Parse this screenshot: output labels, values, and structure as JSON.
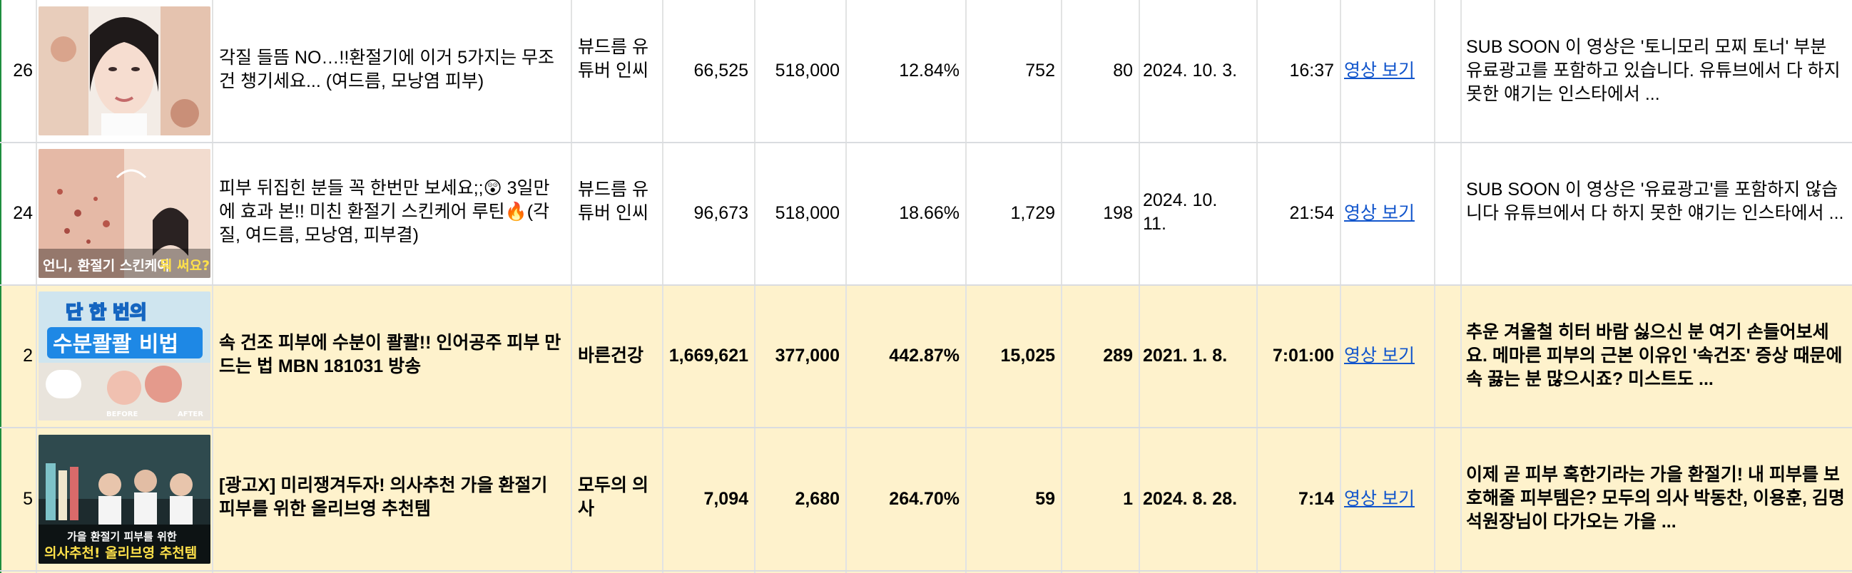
{
  "rows": [
    {
      "rank": "26",
      "title": "각질 들뜸 NO…!!환절기에 이거 5가지는 무조건 챙기세요... (여드름, 모낭염 피부)",
      "channel": "뷰드름 유튜버 인씨",
      "views": "66,525",
      "subscribers": "518,000",
      "ratio": "12.84%",
      "likes": "752",
      "comments": "80",
      "date": "2024. 10. 3.",
      "duration": "16:37",
      "link": "영상 보기",
      "description": "SUB SOON   이 영상은 '토니모리 모찌 토너' 부분 유료광고를 포함하고 있습니다. 유튜브에서 다 하지 못한 얘기는 인스타에서 ...",
      "highlight": false,
      "thumbnail": {
        "icon": "face-closeup-thumbnail-icon",
        "labels": []
      }
    },
    {
      "rank": "24",
      "title": "피부 뒤집힌 분들 꼭 한번만 보세요;;😲  3일만에 효과 본!! 미친 환절기 스킨케어 루틴🔥(각질, 여드름, 모낭염, 피부결)",
      "channel": "뷰드름 유튜버 인씨",
      "views": "96,673",
      "subscribers": "518,000",
      "ratio": "18.66%",
      "likes": "1,729",
      "comments": "198",
      "date": "2024. 10. 11.",
      "duration": "21:54",
      "link": "영상 보기",
      "description": "SUB SOON   이 영상은 '유료광고'를 포함하지 않습니다 유튜브에서 다 하지 못한 얘기는 인스타에서 ...",
      "highlight": false,
      "thumbnail": {
        "icon": "acne-skin-thumbnail-icon",
        "labels": [
          "언니, 환절기 스킨케어 뭐 써요?"
        ]
      }
    },
    {
      "rank": "2",
      "title": "속 건조 피부에 수분이 콸콸!! 인어공주 피부 만드는 법 MBN 181031 방송",
      "channel": "바른건강",
      "views": "1,669,621",
      "subscribers": "377,000",
      "ratio": "442.87%",
      "likes": "15,025",
      "comments": "289",
      "date": "2021. 1. 8.",
      "duration": "7:01:00",
      "link": "영상 보기",
      "description": "추운 겨울철 히터 바람 싫으신 분 여기 손들어보세요. 메마른 피부의 근본 이유인 '속건조' 증상 때문에 속 끓는 분 많으시죠? 미스트도 ...",
      "highlight": true,
      "thumbnail": {
        "icon": "moisture-skin-thumbnail-icon",
        "labels": [
          "단 한 번의",
          "수분콸콸 비법",
          "BEFORE",
          "AFTER"
        ]
      }
    },
    {
      "rank": "5",
      "title": "[광고X] 미리쟁겨두자! 의사추천 가을 환절기 피부를 위한 올리브영 추천템",
      "channel": "모두의 의사",
      "views": "7,094",
      "subscribers": "2,680",
      "ratio": "264.70%",
      "likes": "59",
      "comments": "1",
      "date": "2024. 8. 28.",
      "duration": "7:14",
      "link": "영상 보기",
      "description": "이제 곧 피부 혹한기라는 가을 환절기! 내 피부를 보호해줄 피부템은? 모두의 의사 박동찬, 이용훈, 김명석원장님이 다가오는 가을 ...",
      "highlight": true,
      "thumbnail": {
        "icon": "doctors-products-thumbnail-icon",
        "labels": [
          "가을 환절기 피부를 위한",
          "의사추천! 올리브영 추천템"
        ]
      }
    }
  ],
  "colors": {
    "highlight": "#fef2cc",
    "link": "#1155cc",
    "grid": "#dadce0"
  }
}
